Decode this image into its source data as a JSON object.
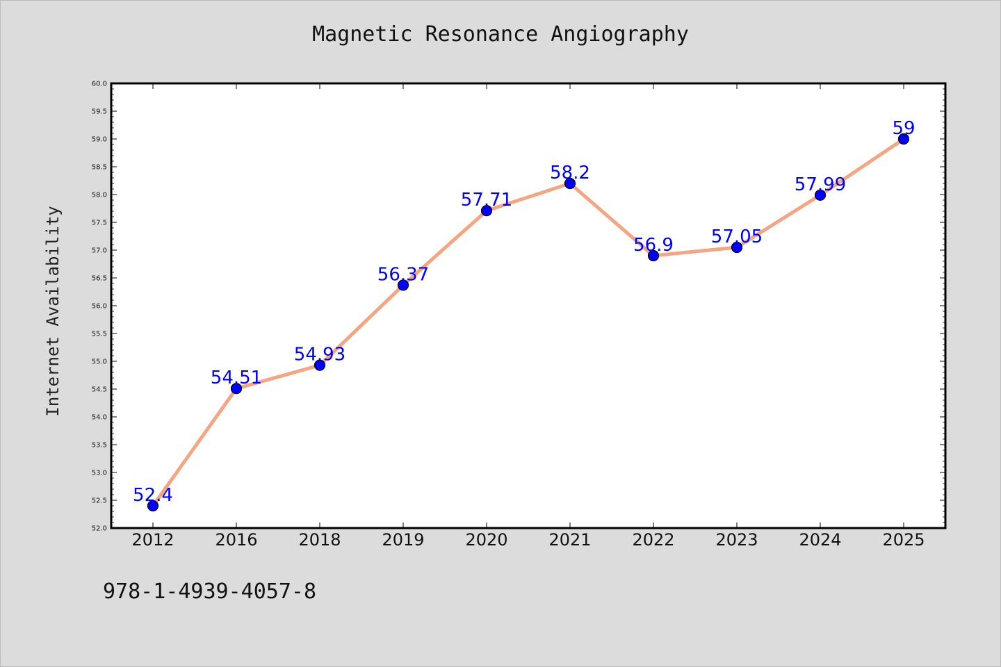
{
  "chart_data": {
    "type": "line",
    "title": "Magnetic Resonance Angiography",
    "xlabel": "",
    "ylabel": "Internet Availability",
    "categories": [
      "2012",
      "2016",
      "2018",
      "2019",
      "2020",
      "2021",
      "2022",
      "2023",
      "2024",
      "2025"
    ],
    "series": [
      {
        "values": [
          52.4,
          54.51,
          54.93,
          56.37,
          57.71,
          58.2,
          56.9,
          57.05,
          57.99,
          59
        ],
        "color": "#f4a582",
        "marker_color": "#0000ff"
      }
    ],
    "data_labels": [
      "52.4",
      "54.51",
      "54.93",
      "56.37",
      "57.71",
      "58.2",
      "56.9",
      "57.05",
      "57.99",
      "59"
    ],
    "label_color": "#0000ff",
    "ylim": [
      52.0,
      60.0
    ],
    "yticks": [
      "52.0",
      "52.5",
      "53.0",
      "53.5",
      "54.0",
      "54.5",
      "55.0",
      "55.5",
      "56.0",
      "56.5",
      "57.0",
      "57.5",
      "58.0",
      "58.5",
      "59.0",
      "59.5",
      "60.0"
    ],
    "grid": false,
    "legend": "none"
  },
  "footer_text": "978-1-4939-4057-8",
  "colors": {
    "background": "#dcdcdc",
    "plot_area": "#ffffff"
  }
}
